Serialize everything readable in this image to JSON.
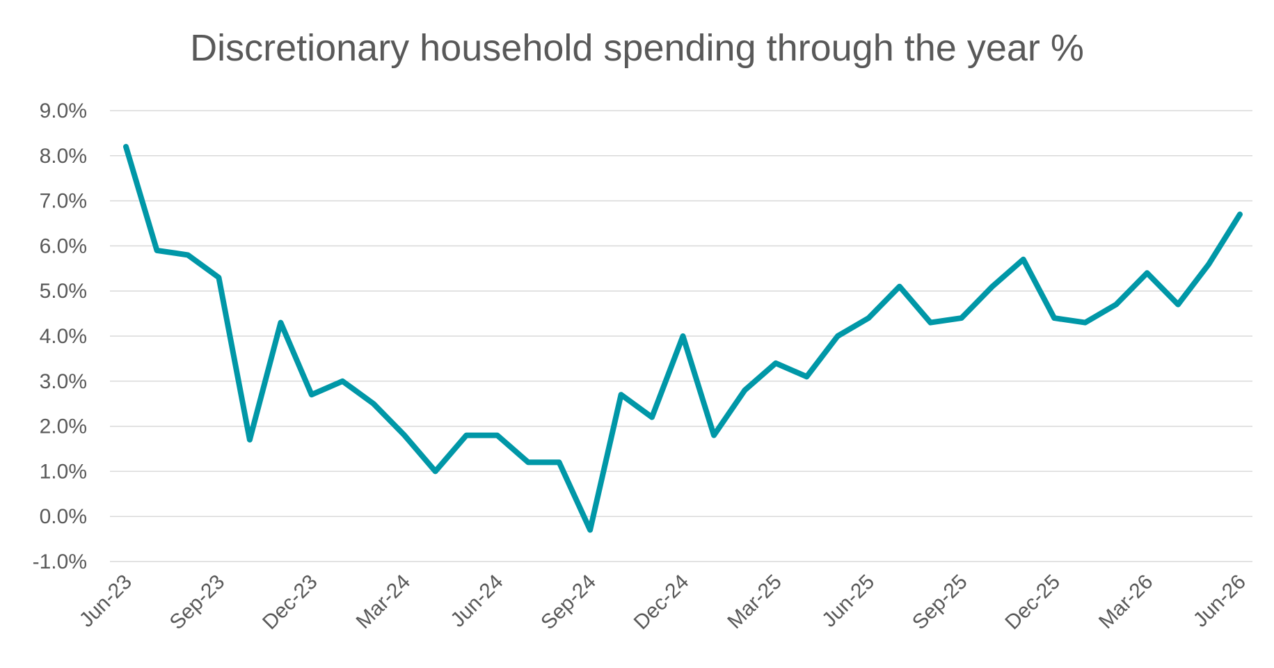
{
  "chart_data": {
    "type": "line",
    "title": "Discretionary household spending through the year %",
    "xlabel": "",
    "ylabel": "",
    "ylim": [
      -1.0,
      9.0
    ],
    "y_ticks": [
      "-1.0%",
      "0.0%",
      "1.0%",
      "2.0%",
      "3.0%",
      "4.0%",
      "5.0%",
      "6.0%",
      "7.0%",
      "8.0%",
      "9.0%"
    ],
    "x_tick_labels": [
      "Jun-23",
      "Sep-23",
      "Dec-23",
      "Mar-24",
      "Jun-24",
      "Sep-24",
      "Dec-24",
      "Mar-25",
      "Jun-25",
      "Sep-25",
      "Dec-25",
      "Mar-26",
      "Jun-26"
    ],
    "grid": true,
    "legend": "none",
    "line_color": "#0097a7",
    "categories": [
      "Jun-23",
      "Jul-23",
      "Aug-23",
      "Sep-23",
      "Oct-23",
      "Nov-23",
      "Dec-23",
      "Jan-24",
      "Feb-24",
      "Mar-24",
      "Apr-24",
      "May-24",
      "Jun-24",
      "Jul-24",
      "Aug-24",
      "Sep-24",
      "Oct-24",
      "Nov-24",
      "Dec-24",
      "Jan-25",
      "Feb-25",
      "Mar-25",
      "Apr-25",
      "May-25",
      "Jun-25",
      "Jul-25",
      "Aug-25",
      "Sep-25",
      "Oct-25",
      "Nov-25",
      "Dec-25",
      "Jan-26",
      "Feb-26",
      "Mar-26",
      "Apr-26",
      "May-26",
      "Jun-26"
    ],
    "series": [
      {
        "values": [
          8.2,
          5.9,
          5.8,
          5.3,
          1.7,
          4.3,
          2.7,
          3.0,
          2.5,
          1.8,
          1.0,
          1.8,
          1.8,
          1.2,
          1.2,
          -0.3,
          2.7,
          2.2,
          4.0,
          1.8,
          2.8,
          3.4,
          3.1,
          4.0,
          4.4,
          5.1,
          4.3,
          4.4,
          5.1,
          5.7,
          4.4,
          4.3,
          4.7,
          5.4,
          4.7,
          5.6,
          6.7
        ]
      }
    ]
  }
}
